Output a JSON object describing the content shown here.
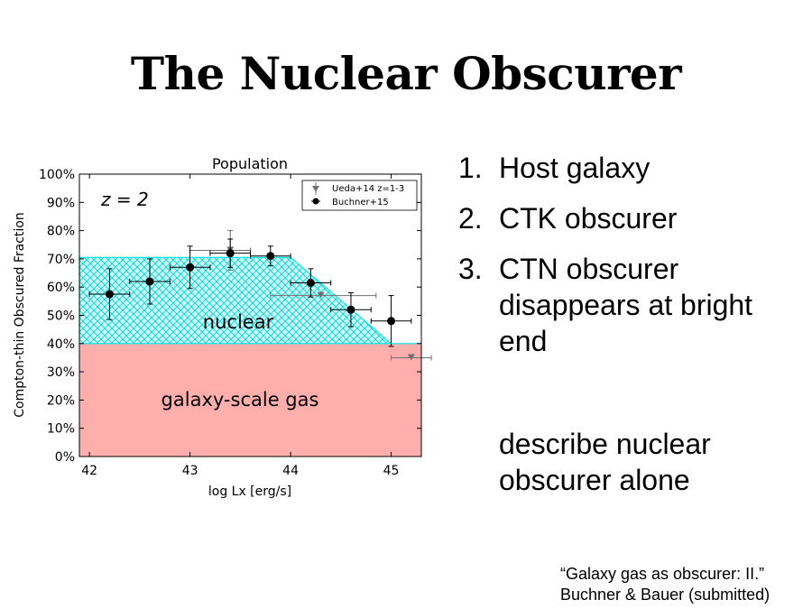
{
  "slide": {
    "title": "The Nuclear Obscurer",
    "list": [
      {
        "num": "1.",
        "text": "Host galaxy"
      },
      {
        "num": "2.",
        "text": "CTK obscurer"
      },
      {
        "num": "3.",
        "text": "CTN obscurer disappears at bright end"
      }
    ],
    "note": "describe nuclear obscurer alone",
    "citation": [
      "“Galaxy gas as obscurer: II.”",
      "Buchner & Bauer (submitted)"
    ]
  },
  "chart_data": {
    "type": "scatter",
    "title": "Population",
    "xlabel": "log Lx [erg/s]",
    "ylabel": "Compton-thin Obscured Fraction",
    "xlim": [
      41.9,
      45.3
    ],
    "ylim": [
      0,
      100
    ],
    "xticks": [
      42,
      43,
      44,
      45
    ],
    "yticks": [
      0,
      10,
      20,
      30,
      40,
      50,
      60,
      70,
      80,
      90,
      100
    ],
    "ytick_labels": [
      "0%",
      "10%",
      "20%",
      "30%",
      "40%",
      "50%",
      "60%",
      "70%",
      "80%",
      "90%",
      "100%"
    ],
    "annotation": "z = 2",
    "regions": [
      {
        "label": "galaxy-scale gas",
        "color": "#ffaeae",
        "polygon": [
          [
            41.9,
            0
          ],
          [
            45.3,
            0
          ],
          [
            45.3,
            40
          ],
          [
            41.9,
            40
          ]
        ]
      },
      {
        "label": "nuclear",
        "color": "#00e5e5",
        "polygon": [
          [
            41.9,
            40
          ],
          [
            45.3,
            40
          ],
          [
            45.0,
            40
          ],
          [
            44.0,
            70.5
          ],
          [
            41.9,
            70.5
          ]
        ]
      }
    ],
    "series": [
      {
        "name": "Ueda+14 z=1-3",
        "marker": "triangle-down",
        "color": "#707070",
        "points": [
          {
            "x": 43.4,
            "y": 73,
            "xerr": [
              0.4,
              0.2
            ],
            "yerr": [
              7,
              7
            ]
          },
          {
            "x": 44.3,
            "y": 57,
            "xerr": [
              0.5,
              0.55
            ],
            "yerr": [
              0,
              0
            ]
          },
          {
            "x": 45.2,
            "y": 35,
            "xerr": [
              0.2,
              0.2
            ],
            "yerr": [
              0,
              0
            ]
          }
        ]
      },
      {
        "name": "Buchner+15",
        "marker": "circle",
        "color": "#000000",
        "points": [
          {
            "x": 42.2,
            "y": 57.5,
            "xerr": [
              0.2,
              0.2
            ],
            "yerr": [
              9,
              9
            ]
          },
          {
            "x": 42.6,
            "y": 62,
            "xerr": [
              0.2,
              0.2
            ],
            "yerr": [
              8,
              8
            ]
          },
          {
            "x": 43.0,
            "y": 67,
            "xerr": [
              0.2,
              0.2
            ],
            "yerr": [
              7.5,
              7.5
            ]
          },
          {
            "x": 43.4,
            "y": 72,
            "xerr": [
              0.2,
              0.2
            ],
            "yerr": [
              5,
              5
            ]
          },
          {
            "x": 43.8,
            "y": 71,
            "xerr": [
              0.2,
              0.2
            ],
            "yerr": [
              3.5,
              3.5
            ]
          },
          {
            "x": 44.2,
            "y": 61.5,
            "xerr": [
              0.2,
              0.2
            ],
            "yerr": [
              5,
              5
            ]
          },
          {
            "x": 44.6,
            "y": 52,
            "xerr": [
              0.2,
              0.2
            ],
            "yerr": [
              6,
              6
            ]
          },
          {
            "x": 45.0,
            "y": 48,
            "xerr": [
              0.2,
              0.2
            ],
            "yerr": [
              9,
              9
            ]
          }
        ]
      }
    ],
    "legend": "top-right",
    "grid": false
  }
}
